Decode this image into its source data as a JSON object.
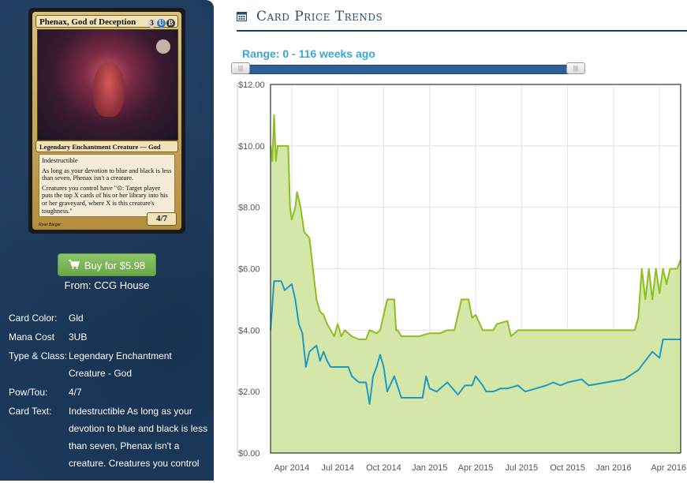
{
  "card": {
    "name": "Phenax, God of Deception",
    "mana": [
      "3",
      "U",
      "B"
    ],
    "type_line": "Legendary Enchantment Creature — God",
    "rules": [
      "Indestructible",
      "As long as your devotion to blue and black is less than seven, Phenax isn't a creature.",
      "Creatures you control have \"⊙: Target player puts the top X cards of his or her library into his or her graveyard, where X is this creature's toughness.\""
    ],
    "power_toughness": "4/7",
    "artist": "Ryan Barger"
  },
  "buy": {
    "label": "Buy for $5.98",
    "cart_icon": "shopping-cart-icon",
    "from": "From: CCG House"
  },
  "attributes": [
    {
      "label": "Card Color:",
      "value": "Gld"
    },
    {
      "label": "Mana Cost",
      "value": "3UB"
    },
    {
      "label": "Type & Class:",
      "value": "Legendary Enchantment Creature - God"
    },
    {
      "label": "Pow/Tou:",
      "value": "4/7"
    },
    {
      "label": "Card Text:",
      "value": "Indestructible As long as your devotion to blue and black is less than seven, Phenax isn't a creature. Creatures you control"
    }
  ],
  "header": {
    "title": "Card Price Trends",
    "icon": "calendar-icon"
  },
  "range": {
    "label": "Range: 0 - 116 weeks ago",
    "min_weeks": 0,
    "max_weeks": 116
  },
  "colors": {
    "sidebar_bg": "#1c3a5e",
    "accent_blue": "#39a7d4",
    "buy_green": "#7cb65a",
    "series_green": "#8cbf1f",
    "series_blue": "#1f9ac4",
    "area_fill": "#d4e6a8"
  },
  "chart_data": {
    "type": "line",
    "ylim": [
      0,
      12
    ],
    "y_ticks": [
      "$0.00",
      "$2.00",
      "$4.00",
      "$6.00",
      "$8.00",
      "$10.00",
      "$12.00"
    ],
    "x_ticks": [
      "Apr 2014",
      "Jul 2014",
      "Oct 2014",
      "Jan 2015",
      "Apr 2015",
      "Jul 2015",
      "Oct 2015",
      "Jan 2016",
      "Apr 2016"
    ],
    "x_ticks_weeks": [
      6,
      19,
      32,
      45,
      58,
      71,
      84,
      97,
      110
    ],
    "grid": true,
    "series": [
      {
        "color": "#8cbf1f",
        "fill": true,
        "points": [
          [
            0,
            10.0
          ],
          [
            0.5,
            9.5
          ],
          [
            1,
            11.0
          ],
          [
            1.5,
            9.5
          ],
          [
            2,
            10.0
          ],
          [
            5,
            10.0
          ],
          [
            5.5,
            8.0
          ],
          [
            6,
            7.6
          ],
          [
            7,
            8.0
          ],
          [
            7.5,
            8.5
          ],
          [
            8.5,
            8.0
          ],
          [
            9.5,
            7.2
          ],
          [
            11,
            7.0
          ],
          [
            12,
            6.0
          ],
          [
            13,
            5.0
          ],
          [
            14,
            4.6
          ],
          [
            15,
            4.5
          ],
          [
            16,
            4.2
          ],
          [
            17,
            4.0
          ],
          [
            18,
            3.8
          ],
          [
            19,
            4.2
          ],
          [
            20,
            3.8
          ],
          [
            21,
            4.0
          ],
          [
            23,
            3.8
          ],
          [
            25,
            3.7
          ],
          [
            27,
            3.7
          ],
          [
            28,
            4.0
          ],
          [
            30,
            3.9
          ],
          [
            31,
            4.0
          ],
          [
            32,
            4.5
          ],
          [
            33,
            5.0
          ],
          [
            35,
            5.0
          ],
          [
            35.5,
            4.0
          ],
          [
            36,
            4.0
          ],
          [
            37,
            3.8
          ],
          [
            40,
            3.8
          ],
          [
            42,
            3.8
          ],
          [
            45,
            3.9
          ],
          [
            48,
            3.9
          ],
          [
            50,
            4.0
          ],
          [
            52,
            4.0
          ],
          [
            53,
            4.5
          ],
          [
            54,
            5.0
          ],
          [
            56,
            5.0
          ],
          [
            57,
            4.4
          ],
          [
            58,
            4.5
          ],
          [
            60,
            4.0
          ],
          [
            63,
            4.0
          ],
          [
            64,
            4.2
          ],
          [
            67,
            4.3
          ],
          [
            68,
            3.8
          ],
          [
            70,
            4.0
          ],
          [
            73,
            4.0
          ],
          [
            76,
            4.0
          ],
          [
            80,
            4.0
          ],
          [
            85,
            4.0
          ],
          [
            90,
            4.0
          ],
          [
            95,
            4.0
          ],
          [
            100,
            4.0
          ],
          [
            103,
            4.0
          ],
          [
            104,
            4.4
          ],
          [
            105,
            6.0
          ],
          [
            106,
            5.0
          ],
          [
            107,
            6.0
          ],
          [
            108,
            5.0
          ],
          [
            109,
            6.0
          ],
          [
            110,
            5.2
          ],
          [
            111,
            6.0
          ],
          [
            112,
            5.5
          ],
          [
            113,
            6.0
          ],
          [
            114,
            6.0
          ],
          [
            115,
            6.0
          ],
          [
            116,
            6.3
          ]
        ]
      },
      {
        "color": "#1f9ac4",
        "fill": false,
        "points": [
          [
            0,
            4.0
          ],
          [
            1,
            5.6
          ],
          [
            3,
            5.6
          ],
          [
            4,
            5.3
          ],
          [
            6,
            5.5
          ],
          [
            7,
            5.0
          ],
          [
            8,
            4.2
          ],
          [
            9,
            3.9
          ],
          [
            10,
            2.8
          ],
          [
            11,
            3.3
          ],
          [
            13,
            3.5
          ],
          [
            14,
            3.0
          ],
          [
            15,
            3.3
          ],
          [
            16,
            3.0
          ],
          [
            17,
            2.8
          ],
          [
            20,
            2.8
          ],
          [
            22,
            2.8
          ],
          [
            23,
            2.5
          ],
          [
            25,
            2.3
          ],
          [
            27,
            2.3
          ],
          [
            28,
            1.6
          ],
          [
            29,
            2.5
          ],
          [
            30,
            2.8
          ],
          [
            31,
            3.2
          ],
          [
            32,
            2.8
          ],
          [
            33,
            2.0
          ],
          [
            35,
            2.5
          ],
          [
            37,
            1.8
          ],
          [
            40,
            1.8
          ],
          [
            43,
            1.8
          ],
          [
            44,
            2.5
          ],
          [
            45,
            2.1
          ],
          [
            47,
            2.0
          ],
          [
            50,
            2.3
          ],
          [
            53,
            1.9
          ],
          [
            55,
            2.2
          ],
          [
            57,
            2.2
          ],
          [
            58,
            2.5
          ],
          [
            60,
            2.2
          ],
          [
            61,
            2.0
          ],
          [
            63,
            2.0
          ],
          [
            65,
            2.1
          ],
          [
            67,
            2.1
          ],
          [
            70,
            2.2
          ],
          [
            72,
            2.0
          ],
          [
            75,
            2.1
          ],
          [
            78,
            2.2
          ],
          [
            80,
            2.3
          ],
          [
            82,
            2.2
          ],
          [
            84,
            2.3
          ],
          [
            88,
            2.4
          ],
          [
            90,
            2.2
          ],
          [
            95,
            2.3
          ],
          [
            100,
            2.4
          ],
          [
            104,
            2.7
          ],
          [
            106,
            3.0
          ],
          [
            108,
            3.3
          ],
          [
            110,
            3.1
          ],
          [
            111,
            3.7
          ],
          [
            113,
            3.7
          ],
          [
            116,
            3.7
          ]
        ]
      }
    ]
  }
}
